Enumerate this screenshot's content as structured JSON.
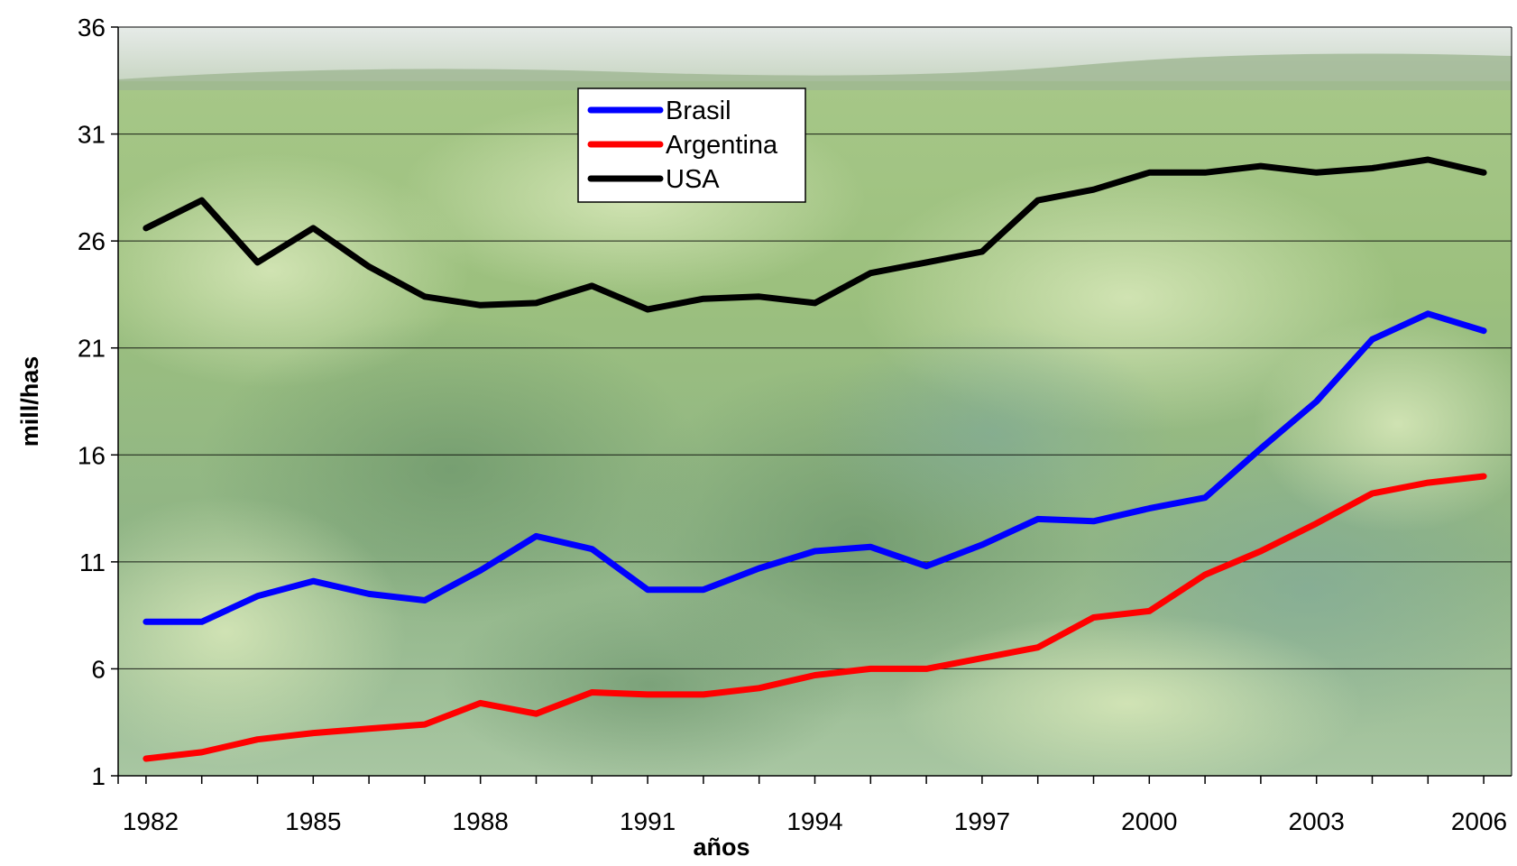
{
  "chart_data": {
    "type": "line",
    "title": "",
    "xlabel": "años",
    "ylabel": "mill/has",
    "ylim": [
      1,
      36
    ],
    "y_ticks": [
      1,
      6,
      11,
      16,
      21,
      26,
      31,
      36
    ],
    "x_ticks": [
      1982,
      1985,
      1988,
      1991,
      1994,
      1997,
      2000,
      2003,
      2006
    ],
    "xlim": [
      1981.5,
      2006.5
    ],
    "grid": "horizontal",
    "legend_position": "top-center",
    "background": "soybean field photo",
    "x": [
      1982,
      1983,
      1984,
      1985,
      1986,
      1987,
      1988,
      1989,
      1990,
      1991,
      1992,
      1993,
      1994,
      1995,
      1996,
      1997,
      1998,
      1999,
      2000,
      2001,
      2002,
      2003,
      2004,
      2005,
      2006
    ],
    "series": [
      {
        "name": "Brasil",
        "color": "#0000ff",
        "values": [
          8.2,
          8.2,
          9.4,
          10.1,
          9.5,
          9.2,
          10.6,
          12.2,
          11.6,
          9.7,
          9.7,
          10.7,
          11.5,
          11.7,
          10.8,
          11.8,
          13.0,
          12.9,
          13.5,
          14.0,
          16.3,
          18.5,
          21.4,
          22.6,
          21.8
        ]
      },
      {
        "name": "Argentina",
        "color": "#ff0000",
        "values": [
          1.8,
          2.1,
          2.7,
          3.0,
          3.2,
          3.4,
          4.4,
          3.9,
          4.9,
          4.8,
          4.8,
          5.1,
          5.7,
          6.0,
          6.0,
          6.5,
          7.0,
          8.4,
          8.7,
          10.4,
          11.5,
          12.8,
          14.2,
          14.7,
          15.0
        ]
      },
      {
        "name": "USA",
        "color": "#000000",
        "values": [
          26.6,
          27.9,
          25.0,
          26.6,
          24.8,
          23.4,
          23.0,
          23.1,
          23.9,
          22.8,
          23.3,
          23.4,
          23.1,
          24.5,
          25.0,
          25.5,
          27.9,
          28.4,
          29.2,
          29.2,
          29.5,
          29.2,
          29.4,
          29.8,
          29.2
        ]
      }
    ]
  }
}
